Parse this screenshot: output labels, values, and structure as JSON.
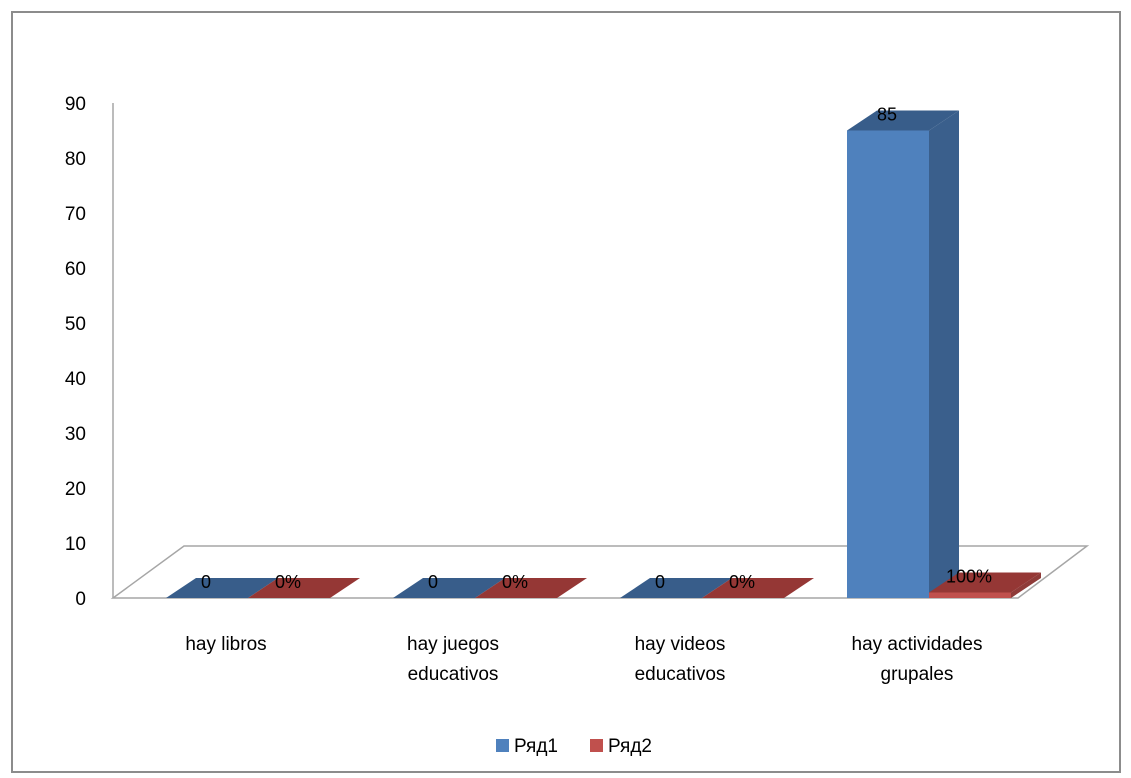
{
  "chart_data": {
    "type": "bar",
    "categories": [
      [
        "hay libros"
      ],
      [
        "hay juegos",
        "educativos"
      ],
      [
        "hay videos",
        "educativos"
      ],
      [
        "hay actividades",
        "grupales"
      ]
    ],
    "series": [
      {
        "name": "Ряд1",
        "values": [
          0,
          0,
          0,
          85
        ],
        "labels": [
          "0",
          "0",
          "0",
          "85"
        ],
        "color": "#4f81bd",
        "side_color": "#3a5f8c",
        "top_color": "#385d8a"
      },
      {
        "name": "Ряд2",
        "values": [
          0,
          0,
          0,
          1
        ],
        "labels": [
          "0%",
          "0%",
          "0%",
          "100%"
        ],
        "color": "#c0504d",
        "side_color": "#8f3b39",
        "top_color": "#953735"
      }
    ],
    "yticks": [
      "0",
      "10",
      "20",
      "30",
      "40",
      "50",
      "60",
      "70",
      "80",
      "90"
    ],
    "ylim": [
      0,
      90
    ],
    "title": "",
    "xlabel": "",
    "ylabel": "",
    "legend_position": "bottom",
    "grid": false,
    "three_d": true
  }
}
